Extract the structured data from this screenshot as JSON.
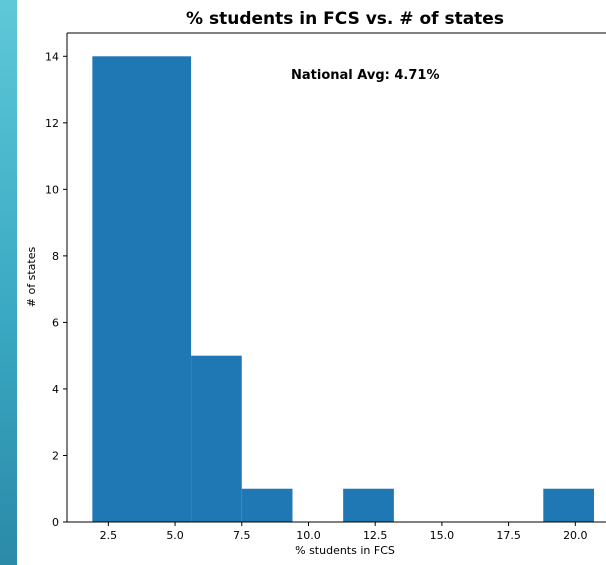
{
  "chart_data": {
    "type": "bar",
    "title": "% students in FCS vs. # of states",
    "xlabel": "% students in FCS",
    "ylabel": "# of states",
    "annotation": "National Avg: 4.71%",
    "bar_color": "#1f77b4",
    "xlim": [
      0.95,
      21.15
    ],
    "ylim": [
      0,
      14.7
    ],
    "xticks": [
      2.5,
      5.0,
      7.5,
      10.0,
      12.5,
      15.0,
      17.5,
      20.0
    ],
    "xtick_labels": [
      "2.5",
      "5.0",
      "7.5",
      "10.0",
      "12.5",
      "15.0",
      "17.5",
      "20.0"
    ],
    "yticks": [
      0,
      2,
      4,
      6,
      8,
      10,
      12,
      14
    ],
    "ytick_labels": [
      "0",
      "2",
      "4",
      "6",
      "8",
      "10",
      "12",
      "14"
    ],
    "bins": [
      {
        "x0": 1.9,
        "x1": 5.6,
        "count": 14
      },
      {
        "x0": 5.6,
        "x1": 7.5,
        "count": 5
      },
      {
        "x0": 7.5,
        "x1": 9.4,
        "count": 1
      },
      {
        "x0": 11.3,
        "x1": 13.2,
        "count": 1
      },
      {
        "x0": 18.8,
        "x1": 20.7,
        "count": 1
      }
    ],
    "grid": false,
    "legend": "none"
  }
}
